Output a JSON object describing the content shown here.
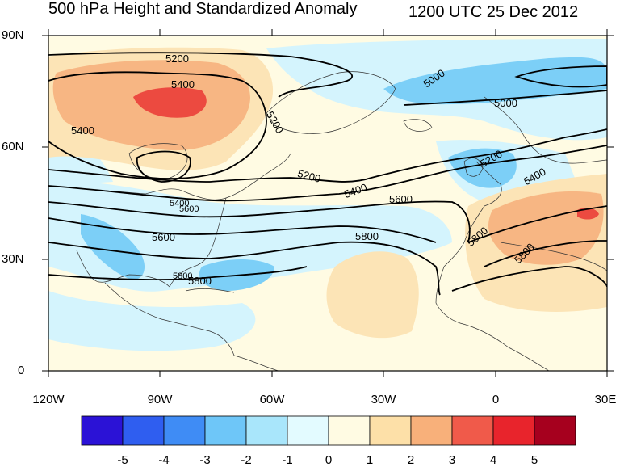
{
  "title_left": "500 hPa Height and Standardized Anomaly",
  "title_right": "1200 UTC 25 Dec 2012",
  "lat_labels": [
    "90N",
    "60N",
    "30N",
    "0"
  ],
  "lon_labels": [
    "120W",
    "90W",
    "60W",
    "30W",
    "0",
    "30E"
  ],
  "contour_labels": [
    "5200",
    "5400",
    "5400",
    "5200",
    "5000",
    "5000",
    "5200",
    "5400",
    "5600",
    "5800",
    "5200",
    "5400",
    "5600",
    "5800",
    "5800",
    "5800",
    "5400",
    "5600",
    "5800"
  ],
  "colorbar": {
    "labels": [
      "-5",
      "-4",
      "-3",
      "-2",
      "-1",
      "0",
      "1",
      "2",
      "3",
      "4",
      "5"
    ],
    "colors": [
      "#2b12d6",
      "#2f5ef0",
      "#3f8cf5",
      "#6ec6f8",
      "#a9e6fb",
      "#e3fbff",
      "#fffbe3",
      "#fde0a8",
      "#f8b07a",
      "#f05a4a",
      "#e8242c",
      "#a6001e"
    ]
  },
  "colors": {
    "ocean_base": "#fffbe3",
    "negative_anomaly": "#bcecfc",
    "stronger_negative": "#76ccf6",
    "positive_anomaly": "#fcd9a2",
    "stronger_positive": "#f5ae7a",
    "strong_positive": "#ec4a40"
  }
}
